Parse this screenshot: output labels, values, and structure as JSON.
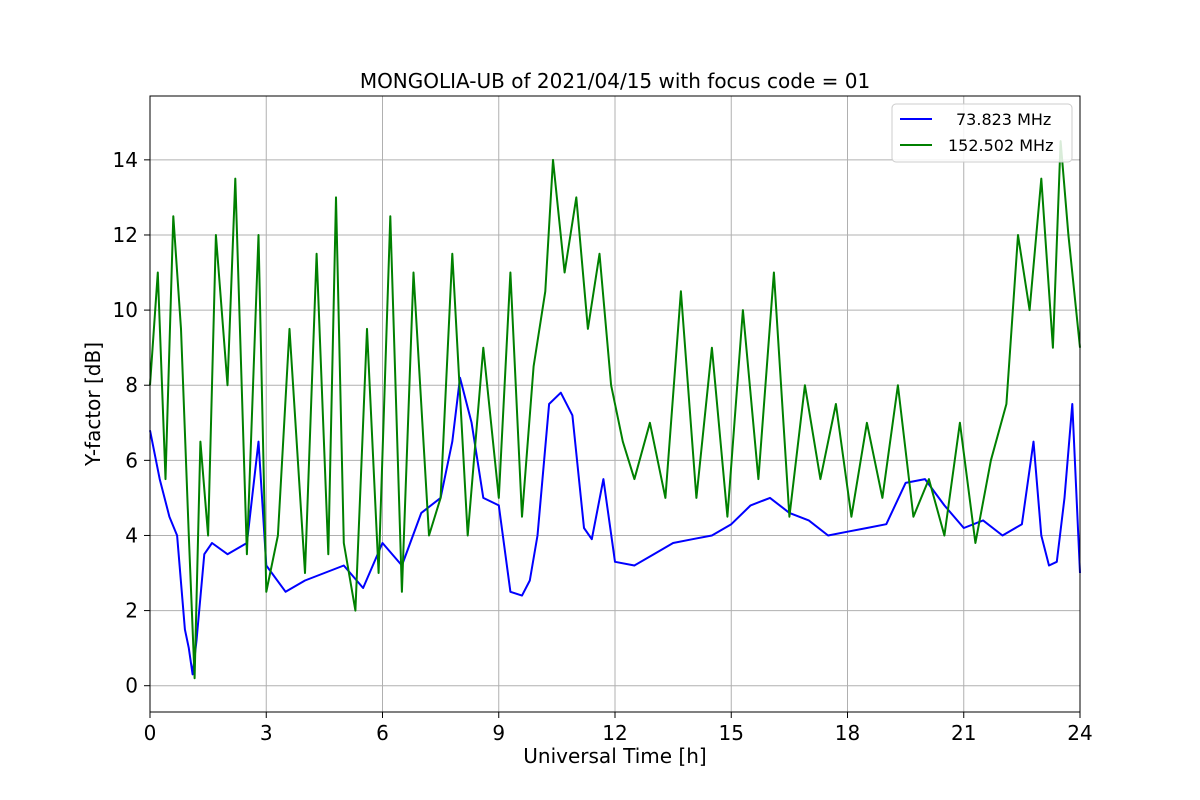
{
  "chart_data": {
    "type": "line",
    "title": "MONGOLIA-UB of 2021/04/15 with focus code = 01",
    "xlabel": "Universal Time [h]",
    "ylabel": "Y-factor [dB]",
    "xlim": [
      0,
      24
    ],
    "ylim": [
      -0.7,
      15.7
    ],
    "xticks": [
      0,
      3,
      6,
      9,
      12,
      15,
      18,
      21,
      24
    ],
    "yticks": [
      0,
      2,
      4,
      6,
      8,
      10,
      12,
      14
    ],
    "grid": true,
    "legend_position": "top-right",
    "series": [
      {
        "name": "73.823 MHz",
        "color": "#0000ff",
        "x": [
          0,
          0.25,
          0.5,
          0.7,
          0.9,
          1.0,
          1.1,
          1.2,
          1.4,
          1.6,
          2.0,
          2.5,
          2.8,
          3.0,
          3.5,
          4.0,
          4.5,
          5.0,
          5.5,
          6.0,
          6.5,
          7.0,
          7.5,
          7.8,
          8.0,
          8.3,
          8.6,
          9.0,
          9.3,
          9.6,
          9.8,
          10.0,
          10.3,
          10.6,
          10.9,
          11.2,
          11.4,
          11.7,
          12.0,
          12.5,
          13.0,
          13.5,
          14.0,
          14.5,
          15.0,
          15.5,
          16.0,
          16.5,
          17.0,
          17.5,
          18.0,
          18.5,
          19.0,
          19.5,
          20.0,
          20.5,
          21.0,
          21.5,
          22.0,
          22.5,
          22.8,
          23.0,
          23.2,
          23.4,
          23.6,
          23.8,
          24.0
        ],
        "values": [
          6.8,
          5.5,
          4.5,
          4.0,
          1.5,
          1.0,
          0.3,
          1.2,
          3.5,
          3.8,
          3.5,
          3.8,
          6.5,
          3.2,
          2.5,
          2.8,
          3.0,
          3.2,
          2.6,
          3.8,
          3.2,
          4.6,
          5.0,
          6.5,
          8.2,
          7.0,
          5.0,
          4.8,
          2.5,
          2.4,
          2.8,
          4.0,
          7.5,
          7.8,
          7.2,
          4.2,
          3.9,
          5.5,
          3.3,
          3.2,
          3.5,
          3.8,
          3.9,
          4.0,
          4.3,
          4.8,
          5.0,
          4.6,
          4.4,
          4.0,
          4.1,
          4.2,
          4.3,
          5.4,
          5.5,
          4.8,
          4.2,
          4.4,
          4.0,
          4.3,
          6.5,
          4.0,
          3.2,
          3.3,
          5.0,
          7.5,
          3.0
        ]
      },
      {
        "name": "152.502 MHz",
        "color": "#008000",
        "x": [
          0,
          0.2,
          0.4,
          0.6,
          0.8,
          1.0,
          1.15,
          1.3,
          1.5,
          1.7,
          2.0,
          2.2,
          2.5,
          2.8,
          3.0,
          3.3,
          3.6,
          4.0,
          4.3,
          4.6,
          4.8,
          5.0,
          5.3,
          5.6,
          5.9,
          6.2,
          6.5,
          6.8,
          7.2,
          7.5,
          7.8,
          8.2,
          8.6,
          9.0,
          9.3,
          9.6,
          9.9,
          10.2,
          10.4,
          10.7,
          11.0,
          11.3,
          11.6,
          11.9,
          12.2,
          12.5,
          12.9,
          13.3,
          13.7,
          14.1,
          14.5,
          14.9,
          15.3,
          15.7,
          16.1,
          16.5,
          16.9,
          17.3,
          17.7,
          18.1,
          18.5,
          18.9,
          19.3,
          19.7,
          20.1,
          20.5,
          20.9,
          21.3,
          21.7,
          22.1,
          22.4,
          22.7,
          23.0,
          23.3,
          23.5,
          23.7,
          24.0
        ],
        "values": [
          8.0,
          11.0,
          5.5,
          12.5,
          9.5,
          4.0,
          0.2,
          6.5,
          4.0,
          12.0,
          8.0,
          13.5,
          3.5,
          12.0,
          2.5,
          4.0,
          9.5,
          3.0,
          11.5,
          3.5,
          13.0,
          3.8,
          2.0,
          9.5,
          3.0,
          12.5,
          2.5,
          11.0,
          4.0,
          5.0,
          11.5,
          4.0,
          9.0,
          5.0,
          11.0,
          4.5,
          8.5,
          10.5,
          14.0,
          11.0,
          13.0,
          9.5,
          11.5,
          8.0,
          6.5,
          5.5,
          7.0,
          5.0,
          10.5,
          5.0,
          9.0,
          4.5,
          10.0,
          5.5,
          11.0,
          4.5,
          8.0,
          5.5,
          7.5,
          4.5,
          7.0,
          5.0,
          8.0,
          4.5,
          5.5,
          4.0,
          7.0,
          3.8,
          6.0,
          7.5,
          12.0,
          10.0,
          13.5,
          9.0,
          14.5,
          12.0,
          9.0
        ]
      }
    ]
  }
}
